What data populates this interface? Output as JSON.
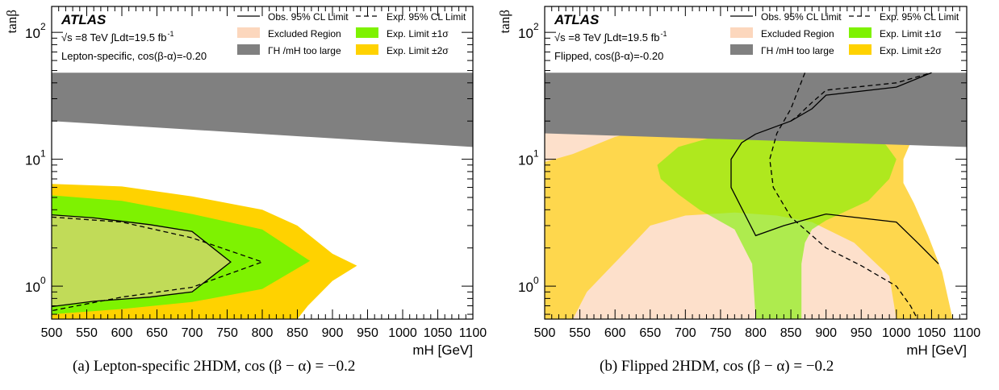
{
  "chart_data": [
    {
      "type": "area",
      "xlabel": "m_H [GeV]",
      "ylabel": "tanβ",
      "xlim": [
        500,
        1100
      ],
      "ylim": [
        0.55,
        160
      ],
      "yscale": "log",
      "xticks": [
        "500",
        "550",
        "600",
        "650",
        "700",
        "750",
        "800",
        "850",
        "900",
        "950",
        "1000",
        "1050",
        "1100"
      ],
      "yticks": [
        {
          "value": 1,
          "label": "10"
        },
        {
          "value": 10,
          "label": "10"
        },
        {
          "value": 100,
          "label": "10"
        }
      ],
      "ytick_exponents": [
        "0",
        "1",
        "2"
      ],
      "annotation": {
        "brand": "ATLAS",
        "energy": "√s =8 TeV ∫Ldt=19.5 fb",
        "energy_exponent": "-1",
        "model": "Lepton-specific, cos(β-α)=-0.20"
      },
      "caption": "(a) Lepton-specific 2HDM, cos (β − α) = −0.2",
      "series": [
        {
          "name": "ΓH/mH too large",
          "kind": "band",
          "x": [
            500,
            1100
          ],
          "lower": [
            20,
            12.5
          ],
          "upper": [
            48,
            48
          ]
        },
        {
          "name": "Exp. Limit ±2σ",
          "kind": "polygon",
          "points": [
            [
              500,
              6.4
            ],
            [
              600,
              6.1
            ],
            [
              700,
              5.1
            ],
            [
              800,
              4
            ],
            [
              850,
              3
            ],
            [
              900,
              1.8
            ],
            [
              935,
              1.45
            ],
            [
              900,
              1.1
            ],
            [
              865,
              0.7
            ],
            [
              850,
              0.55
            ],
            [
              500,
              0.55
            ]
          ]
        },
        {
          "name": "Exp. Limit ±1σ",
          "kind": "polygon",
          "points": [
            [
              500,
              5.2
            ],
            [
              600,
              4.7
            ],
            [
              700,
              3.7
            ],
            [
              800,
              2.8
            ],
            [
              868,
              1.58
            ],
            [
              800,
              0.95
            ],
            [
              700,
              0.75
            ],
            [
              600,
              0.66
            ],
            [
              500,
              0.6
            ]
          ]
        },
        {
          "name": "Excluded Region",
          "kind": "polygon",
          "points": [
            [
              500,
              3.65
            ],
            [
              560,
              3.45
            ],
            [
              640,
              3.05
            ],
            [
              700,
              2.7
            ],
            [
              755,
              1.55
            ],
            [
              700,
              0.9
            ],
            [
              640,
              0.82
            ],
            [
              560,
              0.76
            ],
            [
              500,
              0.69
            ]
          ]
        },
        {
          "name": "Obs. 95% CL Limit",
          "kind": "line",
          "x": [
            500,
            560,
            640,
            700,
            755,
            700,
            640,
            560,
            500
          ],
          "y": [
            3.65,
            3.45,
            3.05,
            2.7,
            1.55,
            0.9,
            0.82,
            0.76,
            0.69
          ]
        },
        {
          "name": "Exp. 95% CL Limit",
          "kind": "line",
          "x": [
            500,
            600,
            700,
            800,
            700,
            600,
            500
          ],
          "y": [
            3.5,
            3.2,
            2.4,
            1.55,
            0.98,
            0.82,
            0.64
          ]
        }
      ]
    },
    {
      "type": "area",
      "xlabel": "m_H [GeV]",
      "ylabel": "tanβ",
      "xlim": [
        500,
        1100
      ],
      "ylim": [
        0.55,
        160
      ],
      "yscale": "log",
      "xticks": [
        "500",
        "550",
        "600",
        "650",
        "700",
        "750",
        "800",
        "850",
        "900",
        "950",
        "1000",
        "1050",
        "1100"
      ],
      "yticks": [
        {
          "value": 1,
          "label": "10"
        },
        {
          "value": 10,
          "label": "10"
        },
        {
          "value": 100,
          "label": "10"
        }
      ],
      "ytick_exponents": [
        "0",
        "1",
        "2"
      ],
      "annotation": {
        "brand": "ATLAS",
        "energy": "√s =8 TeV ∫Ldt=19.5 fb",
        "energy_exponent": "-1",
        "model": "Flipped, cos(β-α)=-0.20"
      },
      "caption": "(b) Flipped 2HDM, cos (β − α) = −0.2",
      "series": [
        {
          "name": "Excluded Region",
          "kind": "polygon",
          "points": [
            [
              500,
              0.55
            ],
            [
              500,
              19
            ],
            [
              650,
              17.5
            ],
            [
              800,
              16
            ],
            [
              900,
              15.2
            ],
            [
              1000,
              14.5
            ],
            [
              1020,
              13.5
            ],
            [
              1010,
              10
            ],
            [
              1010,
              6.5
            ],
            [
              1025,
              4.5
            ],
            [
              1045,
              2.5
            ],
            [
              1065,
              1.3
            ],
            [
              1080,
              0.55
            ]
          ]
        },
        {
          "name": "Exp. Limit ±2σ",
          "kind": "polygon",
          "points": [
            [
              500,
              0.55
            ],
            [
              500,
              9.5
            ],
            [
              540,
              11
            ],
            [
              600,
              15
            ],
            [
              650,
              17.5
            ],
            [
              700,
              16.5
            ],
            [
              760,
              15.8
            ],
            [
              900,
              15.2
            ],
            [
              1000,
              14.5
            ],
            [
              1020,
              13.5
            ],
            [
              1010,
              10
            ],
            [
              1010,
              6.5
            ],
            [
              1025,
              4.5
            ],
            [
              1045,
              2.5
            ],
            [
              1065,
              1.3
            ],
            [
              1080,
              0.55
            ],
            [
              1000,
              0.55
            ],
            [
              990,
              1.2
            ],
            [
              940,
              2.2
            ],
            [
              880,
              3.2
            ],
            [
              830,
              3.6
            ],
            [
              770,
              3.8
            ],
            [
              700,
              3.6
            ],
            [
              650,
              3
            ],
            [
              620,
              2
            ],
            [
              560,
              0.9
            ],
            [
              540,
              0.55
            ]
          ]
        },
        {
          "name": "Exp. Limit ±1σ",
          "kind": "polygon",
          "points": [
            [
              660,
              9
            ],
            [
              690,
              12.5
            ],
            [
              740,
              15
            ],
            [
              800,
              15.9
            ],
            [
              900,
              15.2
            ],
            [
              960,
              14.8
            ],
            [
              985,
              13
            ],
            [
              1000,
              10
            ],
            [
              990,
              7
            ],
            [
              960,
              4.7
            ],
            [
              900,
              3.3
            ],
            [
              880,
              2.8
            ],
            [
              870,
              2.2
            ],
            [
              865,
              1.5
            ],
            [
              865,
              0.55
            ],
            [
              800,
              0.55
            ],
            [
              795,
              1.5
            ],
            [
              770,
              2.8
            ],
            [
              720,
              4
            ],
            [
              690,
              5.3
            ],
            [
              665,
              7
            ]
          ]
        },
        {
          "name": "ΓH/mH too large",
          "kind": "band",
          "x": [
            500,
            1100
          ],
          "lower": [
            16,
            12.5
          ],
          "upper": [
            48,
            48
          ]
        },
        {
          "name": "Obs. 95% CL Limit",
          "kind": "line",
          "x": [
            800,
            780,
            765,
            765,
            800,
            840,
            900,
            1000,
            1030,
            1060
          ],
          "y": [
            15.8,
            13.5,
            10,
            6,
            2.5,
            3,
            3.7,
            3.2,
            2.2,
            1.5
          ],
          "x2": [
            800,
            850,
            880,
            900,
            1000,
            1050
          ],
          "y2": [
            15.8,
            20,
            25,
            32,
            37,
            48
          ]
        },
        {
          "name": "Exp. 95% CL Limit",
          "kind": "line",
          "x": [
            870,
            850,
            830,
            820,
            825,
            850,
            900,
            950,
            1000,
            1020,
            1030
          ],
          "y": [
            48,
            25,
            16,
            10,
            6,
            3.5,
            2,
            1.45,
            1,
            0.7,
            0.55
          ],
          "x2": [
            850,
            860,
            880,
            900,
            1000,
            1050
          ],
          "y2": [
            20,
            22,
            28,
            35,
            40,
            48
          ]
        },
        {
          "name": "Obs. 95% CL Limit",
          "kind": "line",
          "x": [
            800,
            1060
          ],
          "y": [
            15.8,
            0.55
          ],
          "hidden": true
        }
      ]
    }
  ],
  "legend": {
    "obs": "Obs. 95% CL Limit",
    "exp": "Exp. 95% CL Limit",
    "excluded": "Excluded Region",
    "one_sigma": "Exp. Limit ±1σ",
    "width": "ΓH /mH  too large",
    "two_sigma": "Exp. Limit ±2σ"
  },
  "colors": {
    "excluded": "#fde0cb",
    "two_sigma": "#ffd200",
    "one_sigma": "#7ef201",
    "width": "#808080",
    "excluded_over_two": "#fdd46e",
    "excluded_over_one": "#cfe37a"
  }
}
